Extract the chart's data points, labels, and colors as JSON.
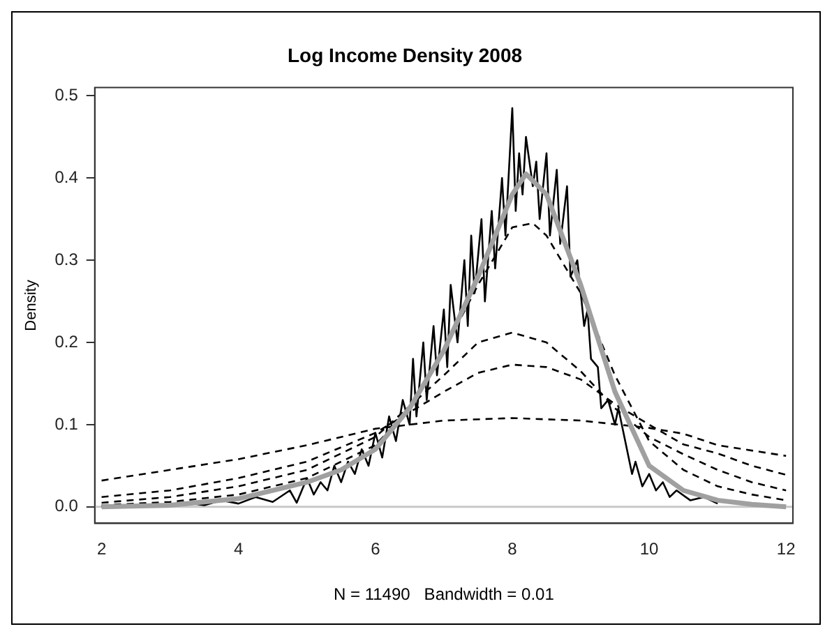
{
  "chart_data": {
    "type": "line",
    "title": "Log Income Density 2008",
    "xlabel": "N = 11490   Bandwidth = 0.01",
    "ylabel": "Density",
    "xlim": [
      1.9,
      12.1
    ],
    "ylim": [
      -0.02,
      0.51
    ],
    "xticks": [
      2,
      4,
      6,
      8,
      10,
      12
    ],
    "yticks": [
      {
        "value": 0,
        "label": "0.0"
      },
      {
        "value": 0.1,
        "label": "0.1"
      },
      {
        "value": 0.2,
        "label": "0.2"
      },
      {
        "value": 0.3,
        "label": "0.3"
      },
      {
        "value": 0.4,
        "label": "0.4"
      },
      {
        "value": 0.5,
        "label": "0.5"
      }
    ],
    "grid": false,
    "legend": false,
    "marker": "none",
    "ref_lines": [
      {
        "axis": "y",
        "value": 0,
        "color": "#c8c8c8",
        "line_style": "solid"
      }
    ],
    "series": [
      {
        "color": "#000000",
        "line_style": "solid",
        "x": [
          2,
          2.25,
          2.5,
          2.75,
          3,
          3.25,
          3.5,
          3.75,
          4,
          4.25,
          4.5,
          4.75,
          4.85,
          5,
          5.1,
          5.2,
          5.3,
          5.4,
          5.5,
          5.6,
          5.7,
          5.8,
          5.9,
          6,
          6.1,
          6.2,
          6.3,
          6.4,
          6.5,
          6.55,
          6.6,
          6.7,
          6.75,
          6.85,
          6.9,
          7,
          7.05,
          7.1,
          7.2,
          7.3,
          7.35,
          7.4,
          7.45,
          7.55,
          7.6,
          7.7,
          7.75,
          7.85,
          7.9,
          8,
          8.05,
          8.1,
          8.15,
          8.2,
          8.3,
          8.35,
          8.4,
          8.5,
          8.55,
          8.65,
          8.7,
          8.8,
          8.85,
          8.95,
          9.05,
          9.1,
          9.15,
          9.25,
          9.3,
          9.4,
          9.5,
          9.55,
          9.65,
          9.75,
          9.8,
          9.9,
          10,
          10.1,
          10.2,
          10.3,
          10.4,
          10.6,
          10.8,
          11
        ],
        "values": [
          0,
          0.002,
          0,
          0.003,
          0.001,
          0.005,
          0.002,
          0.008,
          0.004,
          0.012,
          0.006,
          0.02,
          0.005,
          0.035,
          0.015,
          0.03,
          0.02,
          0.05,
          0.03,
          0.055,
          0.04,
          0.07,
          0.05,
          0.09,
          0.06,
          0.11,
          0.08,
          0.13,
          0.1,
          0.18,
          0.11,
          0.2,
          0.13,
          0.22,
          0.16,
          0.24,
          0.17,
          0.27,
          0.2,
          0.3,
          0.22,
          0.33,
          0.26,
          0.35,
          0.25,
          0.36,
          0.29,
          0.4,
          0.33,
          0.485,
          0.36,
          0.43,
          0.38,
          0.45,
          0.39,
          0.42,
          0.35,
          0.43,
          0.33,
          0.41,
          0.32,
          0.39,
          0.28,
          0.3,
          0.22,
          0.24,
          0.18,
          0.17,
          0.12,
          0.13,
          0.1,
          0.12,
          0.08,
          0.04,
          0.055,
          0.025,
          0.04,
          0.02,
          0.03,
          0.012,
          0.02,
          0.008,
          0.012,
          0.004
        ]
      },
      {
        "color": "#a0a0a0",
        "line_style": "solid",
        "x": [
          2,
          3,
          4,
          5,
          5.5,
          6,
          6.5,
          7,
          7.5,
          8,
          8.2,
          8.5,
          9,
          9.5,
          10,
          10.5,
          11,
          11.5,
          12
        ],
        "values": [
          0,
          0.002,
          0.01,
          0.03,
          0.045,
          0.07,
          0.12,
          0.19,
          0.28,
          0.38,
          0.405,
          0.38,
          0.27,
          0.14,
          0.05,
          0.02,
          0.008,
          0.003,
          0
        ]
      },
      {
        "color": "#000000",
        "line_style": "dashed",
        "x": [
          2,
          3,
          4,
          5,
          6,
          6.5,
          7,
          7.5,
          8,
          8.3,
          8.5,
          9,
          9.5,
          10,
          10.5,
          11,
          11.5,
          12
        ],
        "values": [
          0.002,
          0.006,
          0.015,
          0.035,
          0.075,
          0.12,
          0.19,
          0.27,
          0.34,
          0.345,
          0.33,
          0.26,
          0.16,
          0.08,
          0.045,
          0.025,
          0.015,
          0.008
        ]
      },
      {
        "color": "#000000",
        "line_style": "dashed",
        "x": [
          2,
          3,
          4,
          5,
          6,
          7,
          7.5,
          8,
          8.5,
          9,
          9.5,
          10,
          10.5,
          11,
          11.5,
          12
        ],
        "values": [
          0.005,
          0.012,
          0.025,
          0.045,
          0.085,
          0.16,
          0.2,
          0.212,
          0.2,
          0.165,
          0.12,
          0.085,
          0.064,
          0.045,
          0.03,
          0.02
        ]
      },
      {
        "color": "#000000",
        "line_style": "dashed",
        "x": [
          2,
          3,
          4,
          5,
          6,
          7,
          7.5,
          8,
          8.5,
          9,
          9.5,
          10,
          10.5,
          11,
          11.5,
          12
        ],
        "values": [
          0.012,
          0.02,
          0.035,
          0.055,
          0.09,
          0.14,
          0.163,
          0.173,
          0.17,
          0.155,
          0.125,
          0.1,
          0.076,
          0.065,
          0.05,
          0.039
        ]
      },
      {
        "color": "#000000",
        "line_style": "dashed",
        "x": [
          2,
          3,
          4,
          5,
          6,
          7,
          8,
          9,
          10,
          10.5,
          11,
          12
        ],
        "values": [
          0.032,
          0.045,
          0.058,
          0.075,
          0.095,
          0.105,
          0.108,
          0.105,
          0.096,
          0.089,
          0.075,
          0.062
        ]
      }
    ]
  }
}
